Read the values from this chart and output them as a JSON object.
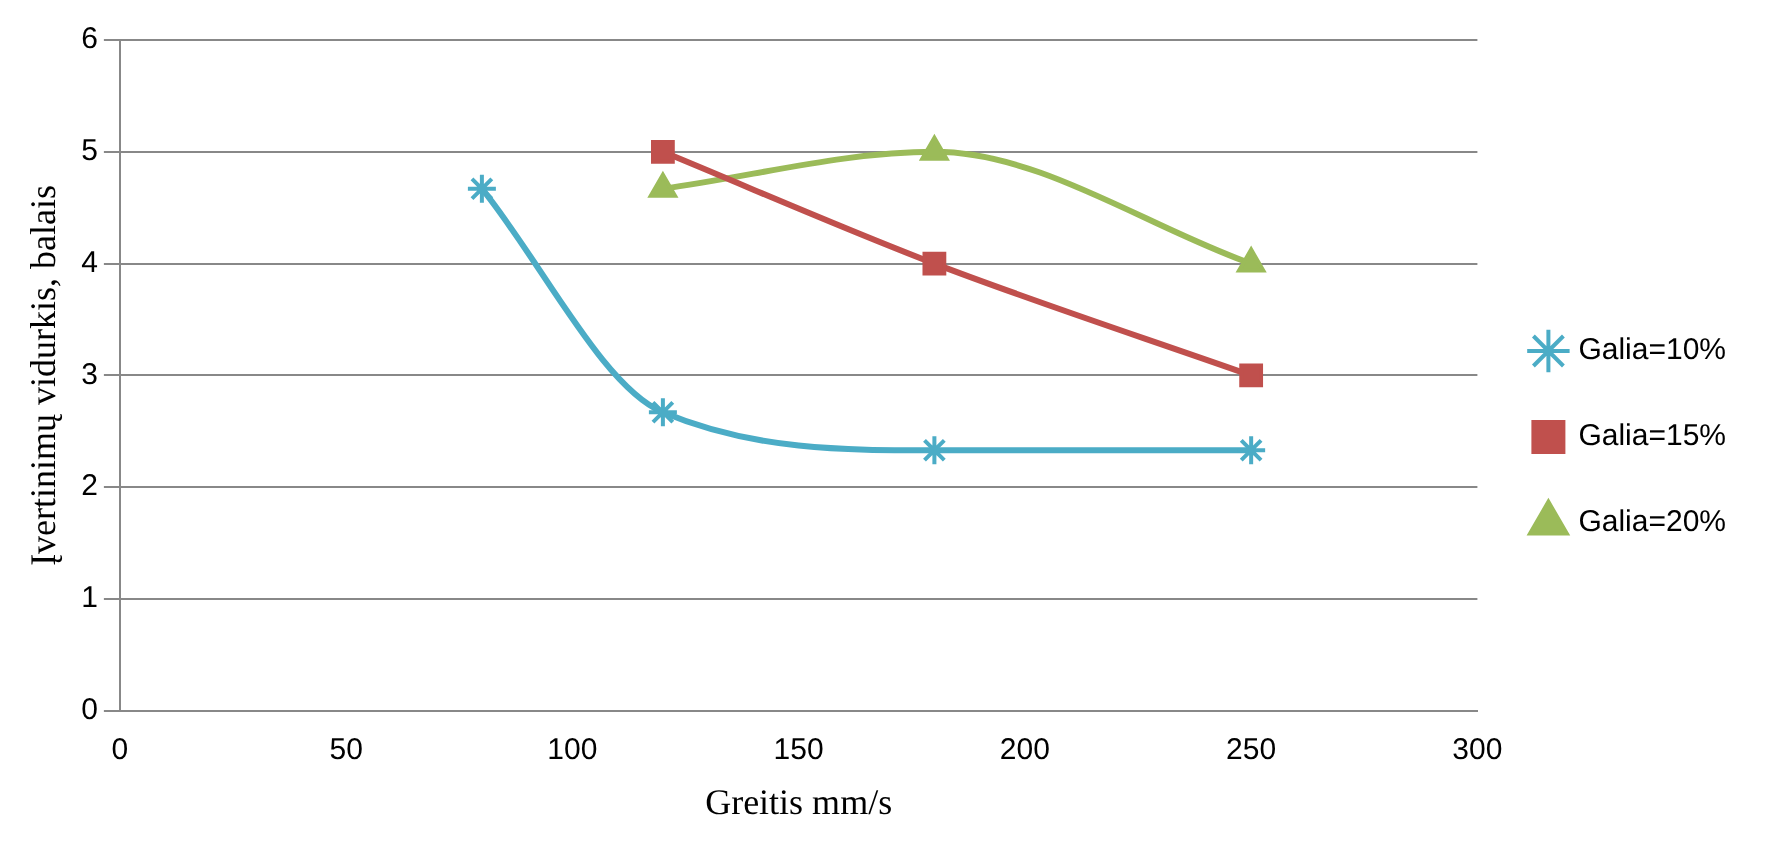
{
  "chart_data": {
    "type": "line",
    "xlabel": "Greitis mm/s",
    "ylabel": "Įvertinimų vidurkis, balais",
    "xlim": [
      0,
      300
    ],
    "xticks": [
      0,
      50,
      100,
      150,
      200,
      250,
      300
    ],
    "ylim": [
      0,
      6
    ],
    "yticks": [
      0,
      1,
      2,
      3,
      4,
      5,
      6
    ],
    "grid": "y",
    "legend": "right",
    "series": [
      {
        "name": "Galia=10%",
        "color": "#4bacc6",
        "marker": "cross",
        "x": [
          80,
          120,
          180,
          250
        ],
        "values": [
          4.67,
          2.67,
          2.33,
          2.33
        ]
      },
      {
        "name": "Galia=15%",
        "color": "#c0504d",
        "marker": "square",
        "x": [
          120,
          180,
          250
        ],
        "values": [
          5,
          4,
          3
        ]
      },
      {
        "name": "Galia=20%",
        "color": "#9bbb59",
        "marker": "triangle",
        "x": [
          120,
          180,
          250
        ],
        "values": [
          4.67,
          5,
          4
        ]
      }
    ]
  }
}
